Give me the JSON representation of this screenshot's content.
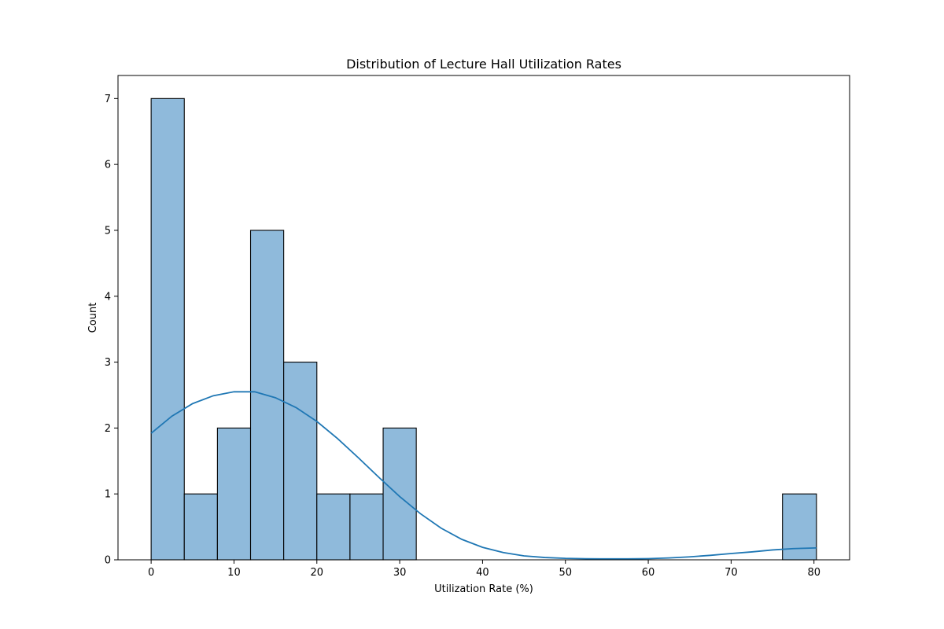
{
  "chart_data": {
    "type": "bar",
    "subtype": "histogram-with-kde",
    "title": "Distribution of Lecture Hall Utilization Rates",
    "xlabel": "Utilization Rate (%)",
    "ylabel": "Count",
    "xlim": [
      -4,
      84.3
    ],
    "ylim": [
      0,
      7.35
    ],
    "xticks": [
      0,
      10,
      20,
      30,
      40,
      50,
      60,
      70,
      80
    ],
    "yticks": [
      0,
      1,
      2,
      3,
      4,
      5,
      6,
      7
    ],
    "grid": false,
    "legend": "none",
    "bins": [
      {
        "start": 0.0,
        "end": 4.0,
        "count": 7
      },
      {
        "start": 4.0,
        "end": 8.0,
        "count": 1
      },
      {
        "start": 8.0,
        "end": 12.0,
        "count": 2
      },
      {
        "start": 12.0,
        "end": 16.0,
        "count": 5
      },
      {
        "start": 16.0,
        "end": 20.0,
        "count": 3
      },
      {
        "start": 20.0,
        "end": 24.0,
        "count": 1
      },
      {
        "start": 24.0,
        "end": 28.0,
        "count": 1
      },
      {
        "start": 28.0,
        "end": 32.0,
        "count": 2
      },
      {
        "start": 32.0,
        "end": 36.0,
        "count": 0
      },
      {
        "start": 36.0,
        "end": 40.0,
        "count": 0
      },
      {
        "start": 40.0,
        "end": 44.0,
        "count": 0
      },
      {
        "start": 44.0,
        "end": 48.0,
        "count": 0
      },
      {
        "start": 48.0,
        "end": 52.0,
        "count": 0
      },
      {
        "start": 52.0,
        "end": 56.0,
        "count": 0
      },
      {
        "start": 56.0,
        "end": 60.0,
        "count": 0
      },
      {
        "start": 60.0,
        "end": 64.0,
        "count": 0
      },
      {
        "start": 64.0,
        "end": 68.0,
        "count": 0
      },
      {
        "start": 68.0,
        "end": 72.0,
        "count": 0
      },
      {
        "start": 72.0,
        "end": 76.2,
        "count": 0
      },
      {
        "start": 76.2,
        "end": 80.3,
        "count": 1
      }
    ],
    "kde": {
      "x": [
        0,
        2.5,
        5,
        7.5,
        10,
        12.5,
        15,
        17.5,
        20,
        22.5,
        25,
        27.5,
        30,
        32.5,
        35,
        37.5,
        40,
        42.5,
        45,
        47.5,
        50,
        52.5,
        55,
        57.5,
        60,
        62.5,
        65,
        67.5,
        70,
        72.5,
        75,
        77.5,
        80.3
      ],
      "y": [
        1.92,
        2.18,
        2.37,
        2.49,
        2.55,
        2.55,
        2.46,
        2.31,
        2.1,
        1.84,
        1.55,
        1.25,
        0.96,
        0.7,
        0.48,
        0.31,
        0.19,
        0.11,
        0.06,
        0.035,
        0.022,
        0.016,
        0.014,
        0.014,
        0.018,
        0.028,
        0.045,
        0.068,
        0.095,
        0.12,
        0.15,
        0.17,
        0.18
      ]
    },
    "colors": {
      "bar_fill": "#8fbadb",
      "bar_edge": "#000000",
      "kde_line": "#1f77b4",
      "axis": "#000000",
      "background": "#ffffff"
    }
  }
}
